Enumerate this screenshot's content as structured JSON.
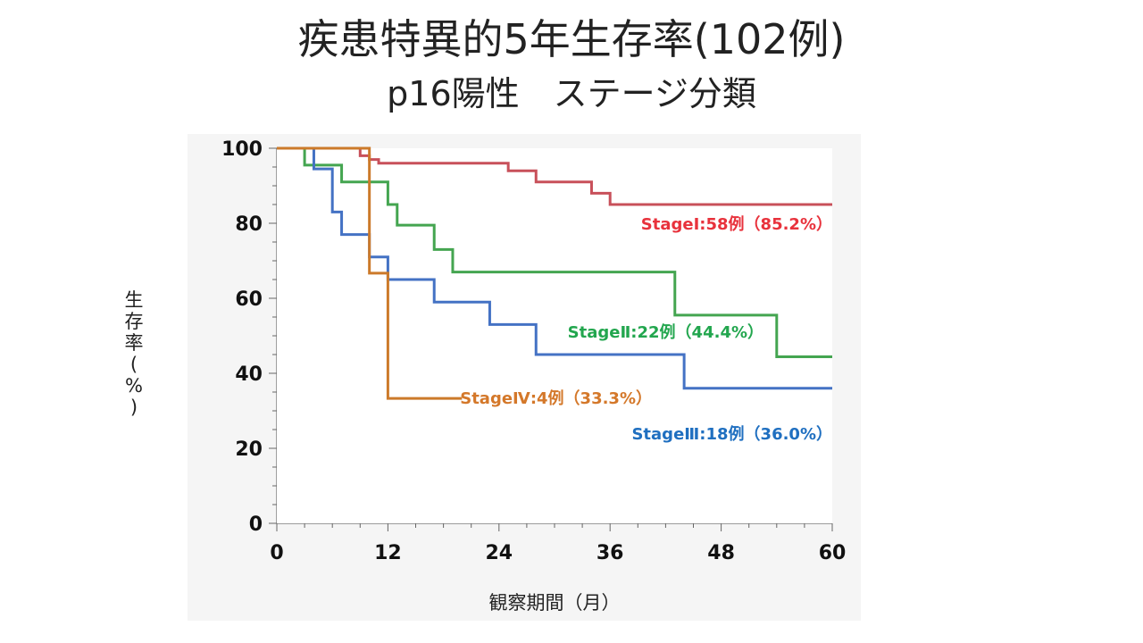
{
  "title": "疾患特異的5年生存率(102例)",
  "subtitle": "p16陽性　ステージ分類",
  "chart_data": {
    "type": "line",
    "step": true,
    "xlabel": "観察期間（月）",
    "ylabel": "生存率(%)",
    "ylabel_chars": [
      "生",
      "存",
      "率",
      "(",
      "%",
      ")"
    ],
    "xlim": [
      0,
      60
    ],
    "ylim": [
      0,
      100
    ],
    "xticks": [
      0,
      12,
      24,
      36,
      48,
      60
    ],
    "yticks": [
      0,
      20,
      40,
      60,
      80,
      100
    ],
    "grid": false,
    "series": [
      {
        "name": "StageⅠ:58例（85.2%）",
        "color": "#c8505a",
        "x": [
          0,
          9,
          10,
          11,
          25,
          28,
          34,
          36,
          60
        ],
        "y": [
          100,
          98,
          97,
          96,
          94,
          91,
          88,
          85,
          85
        ]
      },
      {
        "name": "StageⅡ:22例（44.4%）",
        "color": "#44a550",
        "x": [
          0,
          3,
          7,
          12,
          13,
          17,
          19,
          43,
          54,
          60
        ],
        "y": [
          100,
          95.5,
          91,
          85,
          79.5,
          73,
          67,
          55.5,
          44.4,
          44.4
        ]
      },
      {
        "name": "StageⅢ:18例（36.0%）",
        "color": "#4472c4",
        "x": [
          0,
          4,
          6,
          7,
          10,
          12,
          17,
          23,
          28,
          44,
          60
        ],
        "y": [
          100,
          94.5,
          83,
          77,
          71,
          65,
          59,
          53,
          45,
          36,
          36
        ]
      },
      {
        "name": "StageⅣ:4例（33.3%）",
        "color": "#cc7a2a",
        "x": [
          0,
          10,
          12,
          20
        ],
        "y": [
          100,
          66.7,
          33.3,
          33.3
        ]
      }
    ],
    "annotations": [
      {
        "text": "StageⅠ:58例（85.2%）",
        "color": "#e8323c",
        "series": 0
      },
      {
        "text": "StageⅡ:22例（44.4%）",
        "color": "#22a64e",
        "series": 1
      },
      {
        "text": "StageⅢ:18例（36.0%）",
        "color": "#1f6fc0",
        "series": 2
      },
      {
        "text": "StageⅣ:4例（33.3%）",
        "color": "#d4782a",
        "series": 3
      }
    ]
  }
}
